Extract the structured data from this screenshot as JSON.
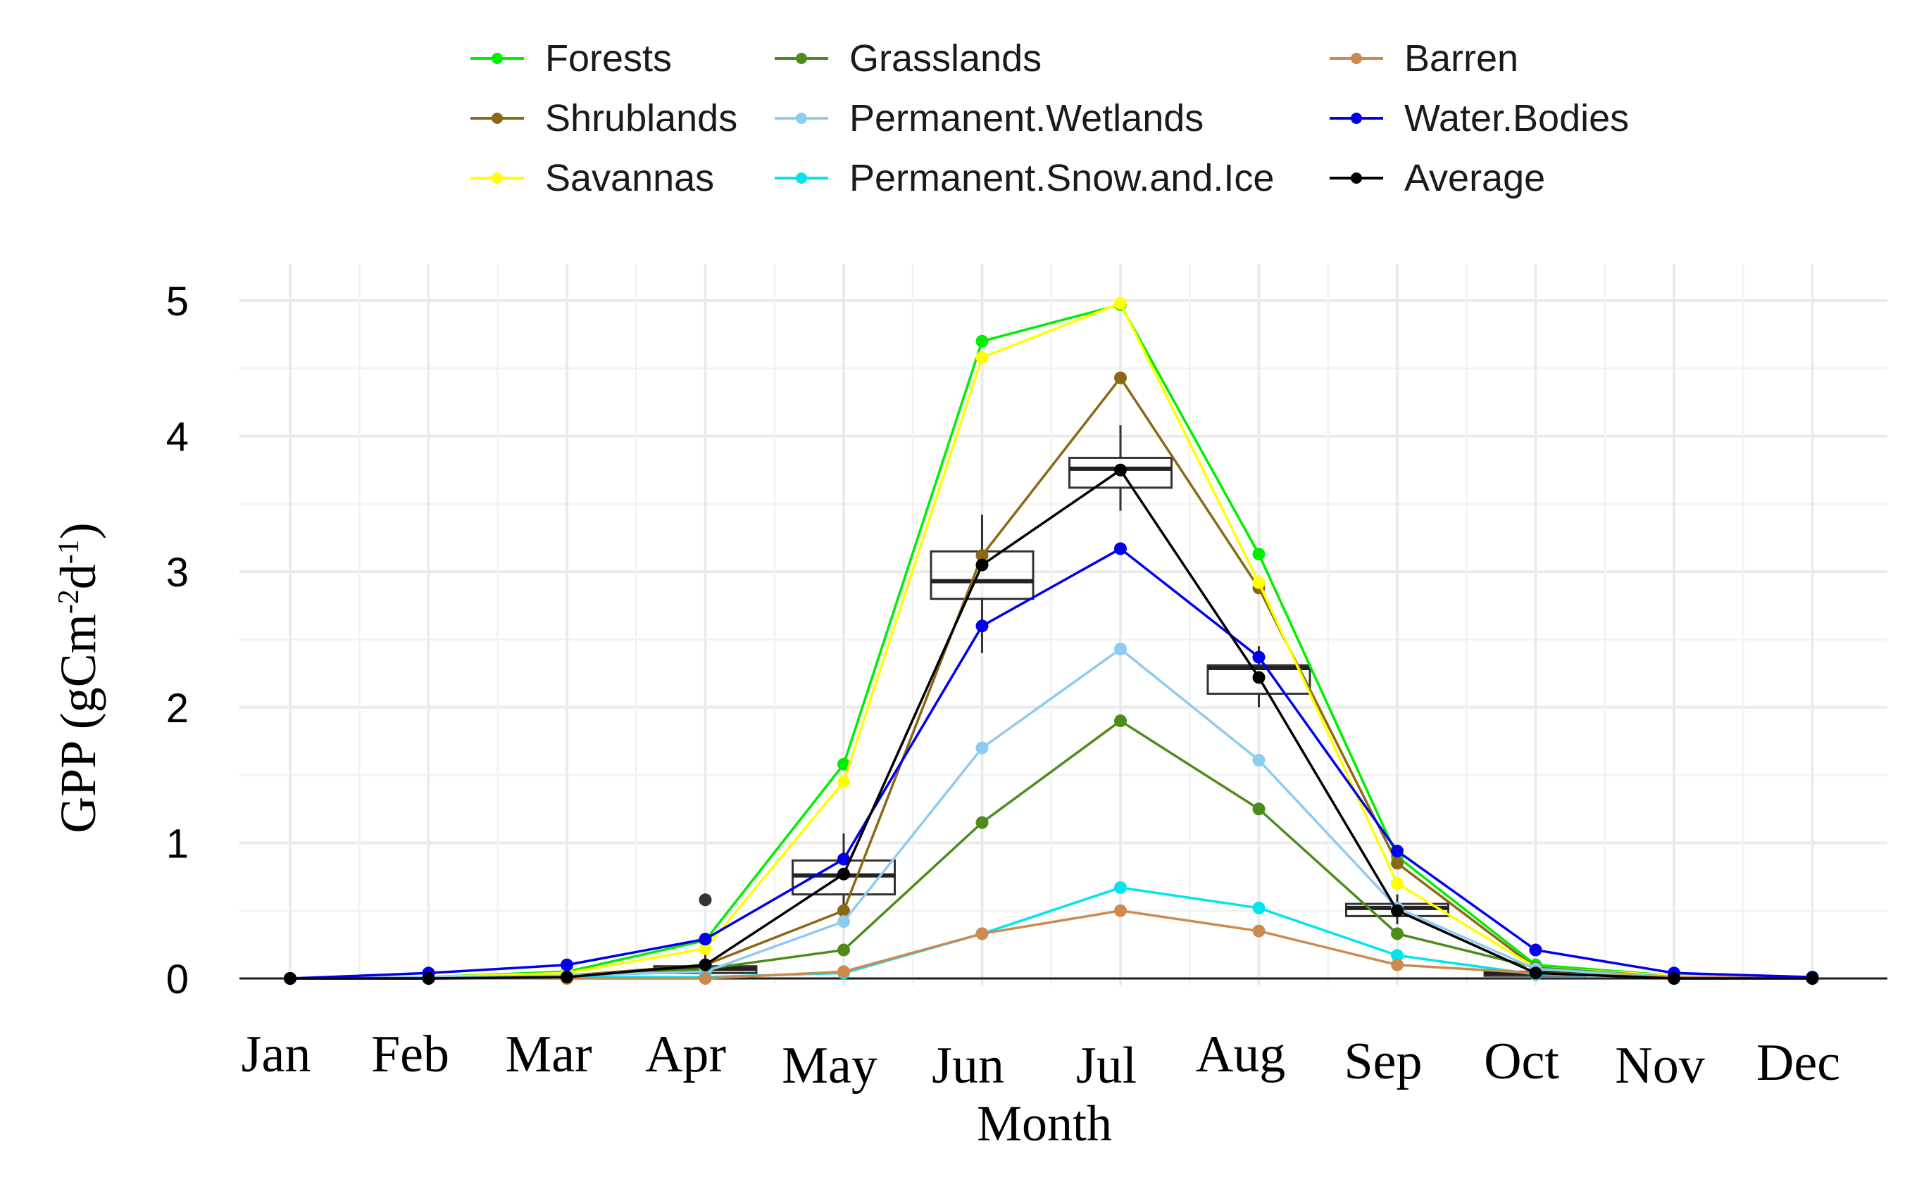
{
  "chart_data": {
    "type": "line",
    "title": "",
    "xlabel": "Month",
    "ylabel_main": "GPP (gCm",
    "ylabel_sup1": "-2",
    "ylabel_mid": "d",
    "ylabel_sup2": "-1",
    "ylabel_end": ")",
    "categories": [
      "Jan",
      "Feb",
      "Mar",
      "Apr",
      "May",
      "Jun",
      "Jul",
      "Aug",
      "Sep",
      "Oct",
      "Nov",
      "Dec"
    ],
    "ylim": [
      0,
      5
    ],
    "yticks": [
      "0",
      "1",
      "2",
      "3",
      "4",
      "5"
    ],
    "grid": true,
    "legend_position": "top",
    "series": [
      {
        "name": "Forests",
        "color": "#00ee00",
        "values": [
          0,
          0.01,
          0.05,
          0.28,
          1.58,
          4.7,
          4.97,
          3.13,
          0.9,
          0.1,
          0.02,
          0.01
        ]
      },
      {
        "name": "Shrublands",
        "color": "#8b6914",
        "values": [
          0,
          0.01,
          0.02,
          0.1,
          0.5,
          3.12,
          4.43,
          2.88,
          0.85,
          0.08,
          0.01,
          0
        ]
      },
      {
        "name": "Savannas",
        "color": "#ffff00",
        "values": [
          0,
          0.01,
          0.04,
          0.22,
          1.45,
          4.58,
          4.98,
          2.92,
          0.7,
          0.08,
          0.02,
          0
        ]
      },
      {
        "name": "Grasslands",
        "color": "#4e8b1a",
        "values": [
          0,
          0.01,
          0.01,
          0.07,
          0.21,
          1.15,
          1.9,
          1.25,
          0.33,
          0.08,
          0.01,
          0
        ]
      },
      {
        "name": "Permanent.Wetlands",
        "color": "#8ecbf0",
        "values": [
          0,
          0.01,
          0.02,
          0.05,
          0.42,
          1.7,
          2.43,
          1.61,
          0.52,
          0.07,
          0.01,
          0
        ]
      },
      {
        "name": "Permanent.Snow.and.Ice",
        "color": "#00e5ee",
        "values": [
          0,
          0,
          0.01,
          0.01,
          0.04,
          0.33,
          0.67,
          0.52,
          0.17,
          0.03,
          0.01,
          0
        ]
      },
      {
        "name": "Barren",
        "color": "#cd8a50",
        "values": [
          0,
          0,
          0,
          0,
          0.05,
          0.33,
          0.5,
          0.35,
          0.1,
          0.04,
          0.01,
          0
        ]
      },
      {
        "name": "Water.Bodies",
        "color": "#0000ee",
        "values": [
          0,
          0.04,
          0.1,
          0.29,
          0.88,
          2.6,
          3.17,
          2.37,
          0.94,
          0.21,
          0.04,
          0.01
        ]
      },
      {
        "name": "Average",
        "color": "#000000",
        "values": [
          0,
          0,
          0.01,
          0.1,
          0.77,
          3.05,
          3.75,
          2.22,
          0.5,
          0.04,
          0,
          0
        ]
      }
    ],
    "boxplots": [
      {
        "month": "Apr",
        "q1": 0.04,
        "median": 0.07,
        "q3": 0.09,
        "whisker_low": 0.0,
        "whisker_high": 0.28,
        "outliers": [
          0.58
        ]
      },
      {
        "month": "May",
        "q1": 0.62,
        "median": 0.76,
        "q3": 0.87,
        "whisker_low": 0.42,
        "whisker_high": 1.07,
        "outliers": []
      },
      {
        "month": "Jun",
        "q1": 2.8,
        "median": 2.93,
        "q3": 3.15,
        "whisker_low": 2.4,
        "whisker_high": 3.42,
        "outliers": []
      },
      {
        "month": "Jul",
        "q1": 3.62,
        "median": 3.76,
        "q3": 3.84,
        "whisker_low": 3.45,
        "whisker_high": 4.08,
        "outliers": []
      },
      {
        "month": "Aug",
        "q1": 2.1,
        "median": 2.29,
        "q3": 2.31,
        "whisker_low": 2.0,
        "whisker_high": 2.45,
        "outliers": []
      },
      {
        "month": "Sep",
        "q1": 0.46,
        "median": 0.52,
        "q3": 0.55,
        "whisker_low": 0.4,
        "whisker_high": 0.62,
        "outliers": []
      },
      {
        "month": "Oct",
        "q1": 0.02,
        "median": 0.04,
        "q3": 0.05,
        "whisker_low": 0.0,
        "whisker_high": 0.08,
        "outliers": []
      }
    ]
  }
}
